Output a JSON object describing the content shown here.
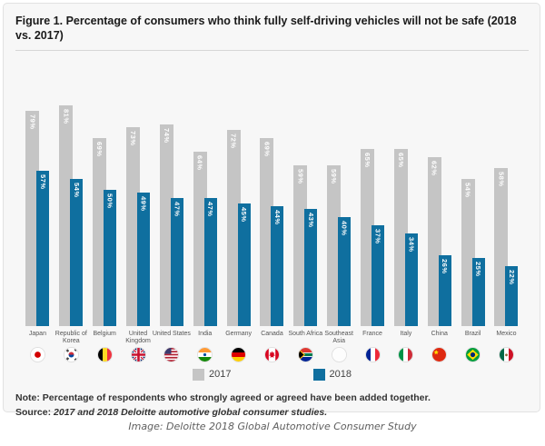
{
  "figure": {
    "title": "Figure 1. Percentage of consumers who think fully self-driving vehicles will not be safe (2018 vs. 2017)",
    "note_label": "Note:",
    "note_text": "Percentage of respondents who strongly agreed or agreed have been added together.",
    "source_label": "Source:",
    "source_text": "2017 and 2018 Deloitte automotive global consumer studies.",
    "caption": "Image: Deloitte 2018 Global Automotive Consumer Study"
  },
  "legend": {
    "items": [
      {
        "label": "2017",
        "color": "#c5c5c5"
      },
      {
        "label": "2018",
        "color": "#0f6f9f"
      }
    ]
  },
  "chart_data": {
    "type": "bar",
    "title": "Figure 1. Percentage of consumers who think fully self-driving vehicles will not be safe (2018 vs. 2017)",
    "categories": [
      "Japan",
      "Republic of Korea",
      "Belgium",
      "United Kingdom",
      "United States",
      "India",
      "Germany",
      "Canada",
      "South Africa",
      "Southeast Asia",
      "France",
      "Italy",
      "China",
      "Brazil",
      "Mexico"
    ],
    "flag_icons": [
      "flag-japan",
      "flag-south-korea",
      "flag-belgium",
      "flag-united-kingdom",
      "flag-united-states",
      "flag-india",
      "flag-germany",
      "flag-canada",
      "flag-south-africa",
      "flag-southeast-asia-blank",
      "flag-france",
      "flag-italy",
      "flag-china",
      "flag-brazil",
      "flag-mexico"
    ],
    "series": [
      {
        "name": "2017",
        "color": "#c5c5c5",
        "values": [
          79,
          81,
          69,
          73,
          74,
          64,
          72,
          69,
          59,
          59,
          65,
          65,
          62,
          54,
          58
        ]
      },
      {
        "name": "2018",
        "color": "#0f6f9f",
        "values": [
          57,
          54,
          50,
          49,
          47,
          47,
          45,
          44,
          43,
          40,
          37,
          34,
          26,
          25,
          22
        ]
      }
    ],
    "value_suffix": "%",
    "xlabel": "",
    "ylabel": "",
    "ylim": [
      0,
      85
    ],
    "grid": false,
    "legend_position": "bottom",
    "bar_value_labels": "inside-top, rotated vertical, white bold"
  }
}
